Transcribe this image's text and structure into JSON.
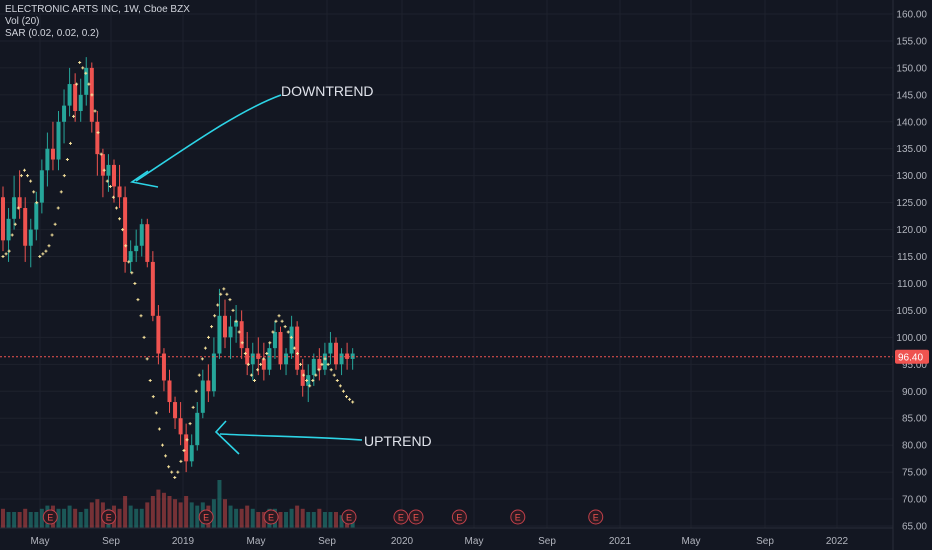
{
  "legend": {
    "symbol_line": "ELECTRONIC ARTS INC, 1W, Cboe BZX",
    "vol_line": "Vol (20)",
    "sar_line": "SAR (0.02, 0.02, 0.2)"
  },
  "annotations": {
    "downtrend": "DOWNTREND",
    "uptrend": "UPTREND"
  },
  "earnings_marker": "E",
  "colors": {
    "background": "#131722",
    "up": "#26a69a",
    "down": "#ef5350",
    "sar": "#f7e39c",
    "arrow": "#2dd4e6",
    "last_price": "#ef5350",
    "axis_text": "#b2b5be",
    "grid": "#1e222d"
  },
  "chart_data": {
    "type": "candlestick",
    "ylim": [
      65,
      160
    ],
    "y_ticks": [
      "65.00",
      "70.00",
      "75.00",
      "80.00",
      "85.00",
      "90.00",
      "95.00",
      "100.00",
      "105.00",
      "110.00",
      "115.00",
      "120.00",
      "125.00",
      "130.00",
      "135.00",
      "140.00",
      "145.00",
      "150.00",
      "155.00",
      "160.00"
    ],
    "x_ticks": [
      "May",
      "Sep",
      "2019",
      "May",
      "Sep",
      "2020",
      "May",
      "Sep",
      "2021",
      "May",
      "Sep",
      "2022"
    ],
    "last_price": 96.4,
    "last_price_label": "96.40",
    "candles": [
      [
        126,
        128,
        116,
        118,
        6
      ],
      [
        118,
        124,
        114,
        122,
        5
      ],
      [
        122,
        130,
        120,
        126,
        5
      ],
      [
        126,
        131,
        122,
        124,
        5
      ],
      [
        124,
        126,
        114,
        117,
        6
      ],
      [
        117,
        122,
        113,
        120,
        5
      ],
      [
        120,
        127,
        118,
        125,
        5
      ],
      [
        125,
        133,
        123,
        131,
        6
      ],
      [
        131,
        138,
        128,
        135,
        7
      ],
      [
        135,
        140,
        131,
        133,
        7
      ],
      [
        133,
        142,
        131,
        140,
        6
      ],
      [
        140,
        146,
        136,
        143,
        6
      ],
      [
        143,
        150,
        141,
        147,
        7
      ],
      [
        147,
        149,
        140,
        142,
        6
      ],
      [
        142,
        148,
        140,
        145,
        5
      ],
      [
        145,
        152,
        143,
        150,
        6
      ],
      [
        150,
        151,
        138,
        140,
        8
      ],
      [
        140,
        142,
        130,
        134,
        9
      ],
      [
        134,
        135,
        126,
        130,
        8
      ],
      [
        130,
        134,
        127,
        132,
        6
      ],
      [
        132,
        133,
        125,
        128,
        7
      ],
      [
        128,
        132,
        124,
        126,
        6
      ],
      [
        126,
        128,
        112,
        114,
        10
      ],
      [
        114,
        118,
        112,
        116,
        7
      ],
      [
        116,
        120,
        114,
        117,
        6
      ],
      [
        117,
        122,
        115,
        121,
        6
      ],
      [
        121,
        122,
        113,
        114,
        8
      ],
      [
        114,
        116,
        103,
        104,
        10
      ],
      [
        104,
        106,
        95,
        97,
        12
      ],
      [
        97,
        98,
        90,
        92,
        11
      ],
      [
        92,
        94,
        86,
        88,
        10
      ],
      [
        88,
        89,
        83,
        85,
        9
      ],
      [
        85,
        88,
        80,
        82,
        8
      ],
      [
        82,
        84,
        75,
        77,
        10
      ],
      [
        77,
        82,
        76,
        80,
        8
      ],
      [
        80,
        88,
        79,
        86,
        7
      ],
      [
        86,
        94,
        85,
        92,
        8
      ],
      [
        92,
        95,
        88,
        90,
        7
      ],
      [
        90,
        100,
        89,
        97,
        9
      ],
      [
        97,
        109,
        96,
        104,
        15
      ],
      [
        104,
        107,
        98,
        100,
        9
      ],
      [
        100,
        104,
        96,
        102,
        7
      ],
      [
        102,
        106,
        99,
        103,
        6
      ],
      [
        103,
        105,
        96,
        98,
        6
      ],
      [
        98,
        101,
        93,
        95,
        7
      ],
      [
        95,
        99,
        92,
        97,
        6
      ],
      [
        97,
        100,
        93,
        96,
        5
      ],
      [
        96,
        99,
        92,
        94,
        5
      ],
      [
        94,
        99,
        93,
        98,
        6
      ],
      [
        98,
        103,
        96,
        101,
        6
      ],
      [
        101,
        102,
        94,
        95,
        5
      ],
      [
        95,
        98,
        93,
        97,
        5
      ],
      [
        97,
        104,
        96,
        102,
        6
      ],
      [
        102,
        103,
        93,
        94,
        7
      ],
      [
        94,
        96,
        89,
        91,
        6
      ],
      [
        91,
        95,
        88,
        93,
        5
      ],
      [
        93,
        97,
        91,
        96,
        5
      ],
      [
        96,
        98,
        92,
        94,
        6
      ],
      [
        94,
        99,
        93,
        97,
        5
      ],
      [
        97,
        101,
        95,
        99,
        5
      ],
      [
        99,
        100,
        94,
        95,
        5
      ],
      [
        95,
        98,
        93,
        97,
        4
      ],
      [
        97,
        99,
        94,
        96,
        4
      ],
      [
        96,
        98,
        94,
        97,
        3
      ]
    ],
    "sar": [
      [
        0,
        115
      ],
      [
        1,
        115.5
      ],
      [
        2,
        116
      ],
      [
        3,
        119
      ],
      [
        4,
        121
      ],
      [
        5,
        124
      ],
      [
        6,
        130
      ],
      [
        7,
        131
      ],
      [
        8,
        130
      ],
      [
        9,
        129
      ],
      [
        10,
        127
      ],
      [
        11,
        125
      ],
      [
        12,
        115
      ],
      [
        13,
        115.5
      ],
      [
        14,
        116
      ],
      [
        15,
        117
      ],
      [
        16,
        119
      ],
      [
        17,
        121
      ],
      [
        18,
        124
      ],
      [
        19,
        127
      ],
      [
        20,
        130
      ],
      [
        21,
        133
      ],
      [
        22,
        136
      ],
      [
        23,
        141
      ],
      [
        24,
        147
      ],
      [
        25,
        151
      ],
      [
        26,
        150
      ],
      [
        27,
        149
      ],
      [
        28,
        147
      ],
      [
        29,
        145
      ],
      [
        30,
        142
      ],
      [
        31,
        138
      ],
      [
        32,
        134
      ],
      [
        33,
        131
      ],
      [
        34,
        129
      ],
      [
        35,
        128
      ],
      [
        36,
        126
      ],
      [
        37,
        124
      ],
      [
        38,
        122
      ],
      [
        39,
        120
      ],
      [
        40,
        117
      ],
      [
        41,
        114
      ],
      [
        42,
        112
      ],
      [
        43,
        110
      ],
      [
        44,
        107
      ],
      [
        45,
        104
      ],
      [
        46,
        100
      ],
      [
        47,
        96
      ],
      [
        48,
        92
      ],
      [
        49,
        89
      ],
      [
        50,
        86
      ],
      [
        51,
        83
      ],
      [
        52,
        80
      ],
      [
        53,
        78
      ],
      [
        54,
        76
      ],
      [
        55,
        75
      ],
      [
        56,
        74
      ],
      [
        57,
        75
      ],
      [
        58,
        77
      ],
      [
        59,
        79
      ],
      [
        60,
        81
      ],
      [
        61,
        84
      ],
      [
        62,
        87
      ],
      [
        63,
        90
      ],
      [
        64,
        93
      ],
      [
        65,
        96
      ],
      [
        66,
        98
      ],
      [
        67,
        100
      ],
      [
        68,
        102
      ],
      [
        69,
        104
      ],
      [
        70,
        106
      ],
      [
        71,
        108
      ],
      [
        72,
        109
      ],
      [
        73,
        108
      ],
      [
        74,
        107
      ],
      [
        75,
        105
      ],
      [
        76,
        103
      ],
      [
        77,
        101
      ],
      [
        78,
        99
      ],
      [
        79,
        97
      ],
      [
        80,
        95
      ],
      [
        81,
        93
      ],
      [
        82,
        92
      ],
      [
        83,
        94
      ],
      [
        84,
        95
      ],
      [
        85,
        96
      ],
      [
        86,
        97
      ],
      [
        87,
        99
      ],
      [
        88,
        101
      ],
      [
        89,
        103
      ],
      [
        90,
        104
      ],
      [
        91,
        103
      ],
      [
        92,
        102
      ],
      [
        93,
        101
      ],
      [
        94,
        100
      ],
      [
        95,
        98
      ],
      [
        96,
        97
      ],
      [
        97,
        95
      ],
      [
        98,
        93
      ],
      [
        99,
        92
      ],
      [
        100,
        91
      ],
      [
        101,
        92
      ],
      [
        102,
        93
      ],
      [
        103,
        94
      ],
      [
        104,
        95
      ],
      [
        105,
        96
      ],
      [
        106,
        95
      ],
      [
        107,
        94
      ],
      [
        108,
        93
      ],
      [
        109,
        92
      ],
      [
        110,
        91
      ],
      [
        111,
        90
      ],
      [
        112,
        89
      ],
      [
        113,
        88.5
      ],
      [
        114,
        88
      ]
    ],
    "earnings_x": [
      6,
      15,
      30,
      40,
      52,
      60,
      69,
      78,
      90
    ]
  }
}
